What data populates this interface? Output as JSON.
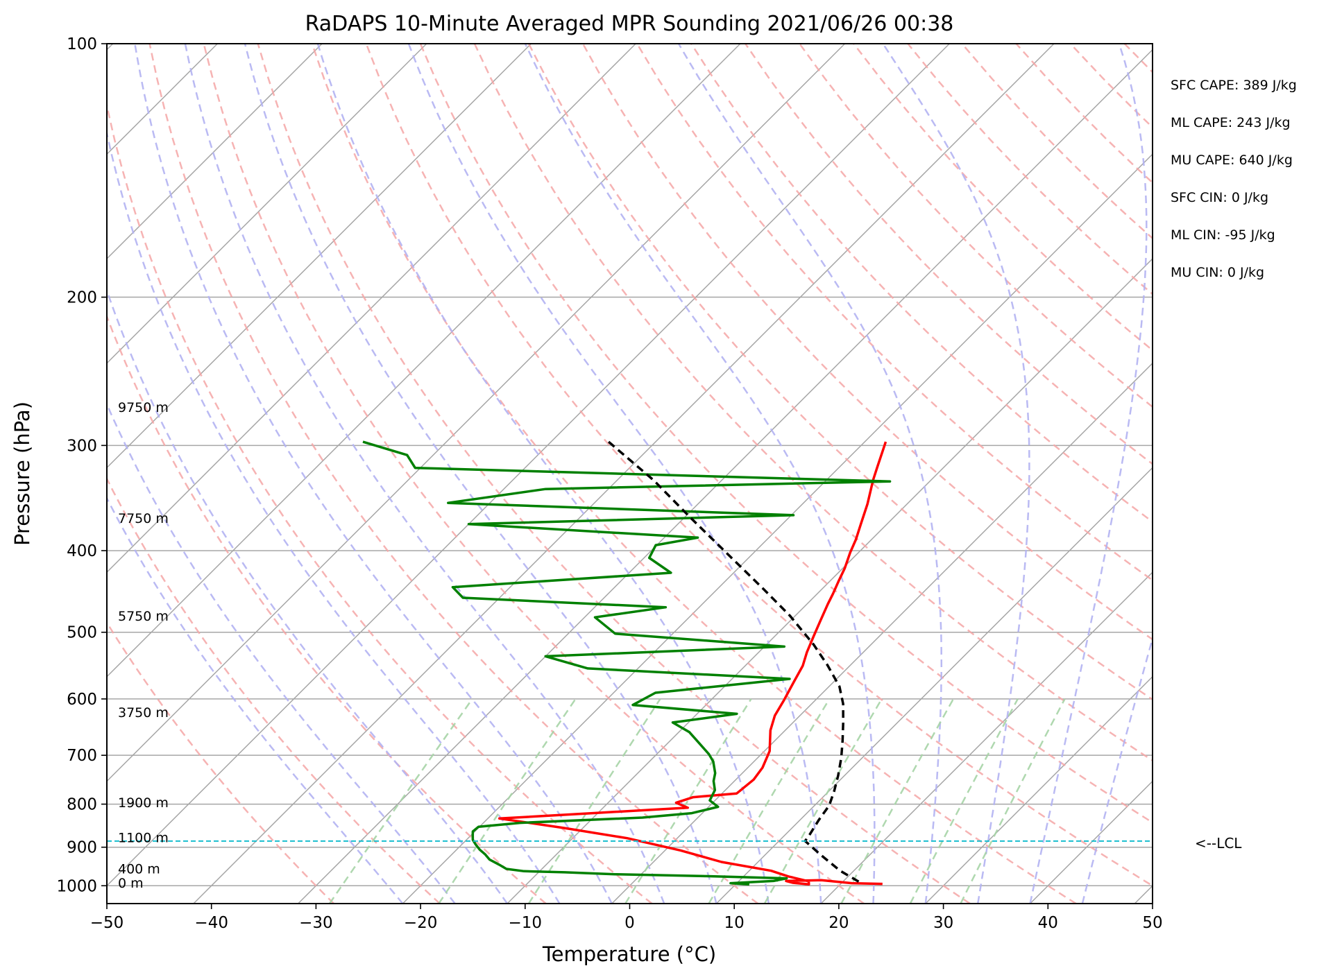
{
  "chart_data": {
    "type": "line",
    "title": "RaDAPS 10-Minute Averaged MPR Sounding 2021/06/26 00:38",
    "xlabel": "Temperature (°C)",
    "ylabel": "Pressure (hPa)",
    "xlim": [
      -50,
      50
    ],
    "ylim": [
      1050,
      100
    ],
    "y_scale": "log",
    "skew": "skew-T log-P",
    "x_ticks": [
      -50,
      -40,
      -30,
      -20,
      -10,
      0,
      10,
      20,
      30,
      40,
      50
    ],
    "x_tick_labels": [
      "−50",
      "−40",
      "−30",
      "−20",
      "−10",
      "0",
      "10",
      "20",
      "30",
      "40",
      "50"
    ],
    "y_ticks": [
      100,
      200,
      300,
      400,
      500,
      600,
      700,
      800,
      900,
      1000
    ],
    "y_tick_labels": [
      "100",
      "200",
      "300",
      "400",
      "500",
      "600",
      "700",
      "800",
      "900",
      "1000"
    ],
    "grid": true,
    "background_lines": {
      "isotherm_color": "#a6a6a6",
      "dry_adiabat_color": "#f4a6a6",
      "moist_adiabat_color": "#b3b3f2",
      "mixing_ratio_color": "#a6d4a6"
    },
    "height_labels": [
      {
        "text": "9750 m",
        "pressure": 270
      },
      {
        "text": "7750 m",
        "pressure": 366
      },
      {
        "text": "5750 m",
        "pressure": 478
      },
      {
        "text": "3750 m",
        "pressure": 622
      },
      {
        "text": "1900 m",
        "pressure": 796
      },
      {
        "text": "1100 m",
        "pressure": 876
      },
      {
        "text": "400 m",
        "pressure": 954
      },
      {
        "text": "0 m",
        "pressure": 992
      }
    ],
    "stats": [
      "SFC CAPE: 389 J/kg",
      "ML CAPE: 243 J/kg",
      "MU CAPE: 640 J/kg",
      "SFC CIN: 0 J/kg",
      "ML CIN: -95 J/kg",
      "MU CIN: 0 J/kg"
    ],
    "lcl": {
      "pressure": 885,
      "label": "<--LCL",
      "color": "#17becf"
    },
    "series": [
      {
        "role": "temperature",
        "color": "#ff0000",
        "points": [
          [
            -18.0,
            297
          ],
          [
            -16.4,
            318
          ],
          [
            -15.6,
            329
          ],
          [
            -15.2,
            334
          ],
          [
            -13.8,
            352
          ],
          [
            -12.5,
            372
          ],
          [
            -11.5,
            388
          ],
          [
            -10.8,
            402
          ],
          [
            -9.8,
            420
          ],
          [
            -9.2,
            434
          ],
          [
            -8.5,
            450
          ],
          [
            -8.0,
            463
          ],
          [
            -7.1,
            485
          ],
          [
            -6.3,
            505
          ],
          [
            -5.4,
            528
          ],
          [
            -4.5,
            548
          ],
          [
            -3.8,
            573
          ],
          [
            -3.0,
            602
          ],
          [
            -2.4,
            628
          ],
          [
            -1.4,
            654
          ],
          [
            0.5,
            692
          ],
          [
            1.4,
            724
          ],
          [
            1.7,
            748
          ],
          [
            1.4,
            777
          ],
          [
            -2.4,
            785
          ],
          [
            -3.5,
            797
          ],
          [
            -1.9,
            808
          ],
          [
            -10.5,
            820
          ],
          [
            -18.9,
            832
          ],
          [
            -11.8,
            854
          ],
          [
            -4.8,
            878
          ],
          [
            1.5,
            908
          ],
          [
            6.5,
            937
          ],
          [
            12.1,
            960
          ],
          [
            14.3,
            975
          ],
          [
            16.7,
            988
          ],
          [
            17.0,
            996
          ],
          [
            15.3,
            992
          ],
          [
            14.5,
            987
          ],
          [
            17.8,
            985
          ],
          [
            21.0,
            993
          ],
          [
            24.0,
            995
          ]
        ]
      },
      {
        "role": "dewpoint",
        "color": "#008000",
        "points": [
          [
            -68.0,
            297
          ],
          [
            -62.5,
            308
          ],
          [
            -60.5,
            319
          ],
          [
            -13.8,
            331
          ],
          [
            -46.0,
            338
          ],
          [
            -54.0,
            351
          ],
          [
            -19.8,
            363
          ],
          [
            -50.0,
            372
          ],
          [
            -26.8,
            386
          ],
          [
            -30.1,
            394
          ],
          [
            -29.5,
            408
          ],
          [
            -26.0,
            425
          ],
          [
            -45.5,
            442
          ],
          [
            -43.5,
            455
          ],
          [
            -23.2,
            467
          ],
          [
            -29.0,
            480
          ],
          [
            -25.5,
            502
          ],
          [
            -8.1,
            520
          ],
          [
            -30.0,
            534
          ],
          [
            -24.8,
            552
          ],
          [
            -4.5,
            568
          ],
          [
            -16.0,
            590
          ],
          [
            -17.0,
            610
          ],
          [
            -6.2,
            625
          ],
          [
            -11.5,
            640
          ],
          [
            -9.0,
            657
          ],
          [
            -7.5,
            672
          ],
          [
            -5.0,
            698
          ],
          [
            -3.9,
            712
          ],
          [
            -2.6,
            735
          ],
          [
            -2.0,
            751
          ],
          [
            -1.0,
            770
          ],
          [
            -0.5,
            792
          ],
          [
            0.9,
            806
          ],
          [
            -1.0,
            820
          ],
          [
            -5.3,
            830
          ],
          [
            -16.5,
            842
          ],
          [
            -20.1,
            851
          ],
          [
            -20.2,
            862
          ],
          [
            -19.8,
            872
          ],
          [
            -19.4,
            882
          ],
          [
            -18.7,
            893
          ],
          [
            -17.8,
            906
          ],
          [
            -16.8,
            918
          ],
          [
            -15.9,
            931
          ],
          [
            -14.5,
            944
          ],
          [
            -13.4,
            955
          ],
          [
            -11.5,
            961
          ],
          [
            -7.5,
            964
          ],
          [
            -2.5,
            969
          ],
          [
            6.2,
            974
          ],
          [
            14.3,
            980
          ],
          [
            13.3,
            987
          ],
          [
            9.4,
            993
          ],
          [
            11.3,
            996
          ]
        ]
      },
      {
        "role": "parcel",
        "color": "#000000",
        "dashed": true,
        "points": [
          [
            -44.5,
            297
          ],
          [
            -36.5,
            330
          ],
          [
            -29.5,
            365
          ],
          [
            -22.5,
            403
          ],
          [
            -15.8,
            443
          ],
          [
            -10.5,
            478
          ],
          [
            -5.5,
            517
          ],
          [
            -2.2,
            547
          ],
          [
            1.0,
            580
          ],
          [
            3.0,
            608
          ],
          [
            4.8,
            640
          ],
          [
            6.5,
            673
          ],
          [
            8.0,
            705
          ],
          [
            9.4,
            740
          ],
          [
            10.5,
            772
          ],
          [
            11.4,
            803
          ],
          [
            11.8,
            836
          ],
          [
            12.3,
            868
          ],
          [
            12.5,
            885
          ],
          [
            15.4,
            920
          ],
          [
            18.7,
            960
          ],
          [
            22.0,
            994
          ]
        ]
      }
    ]
  }
}
